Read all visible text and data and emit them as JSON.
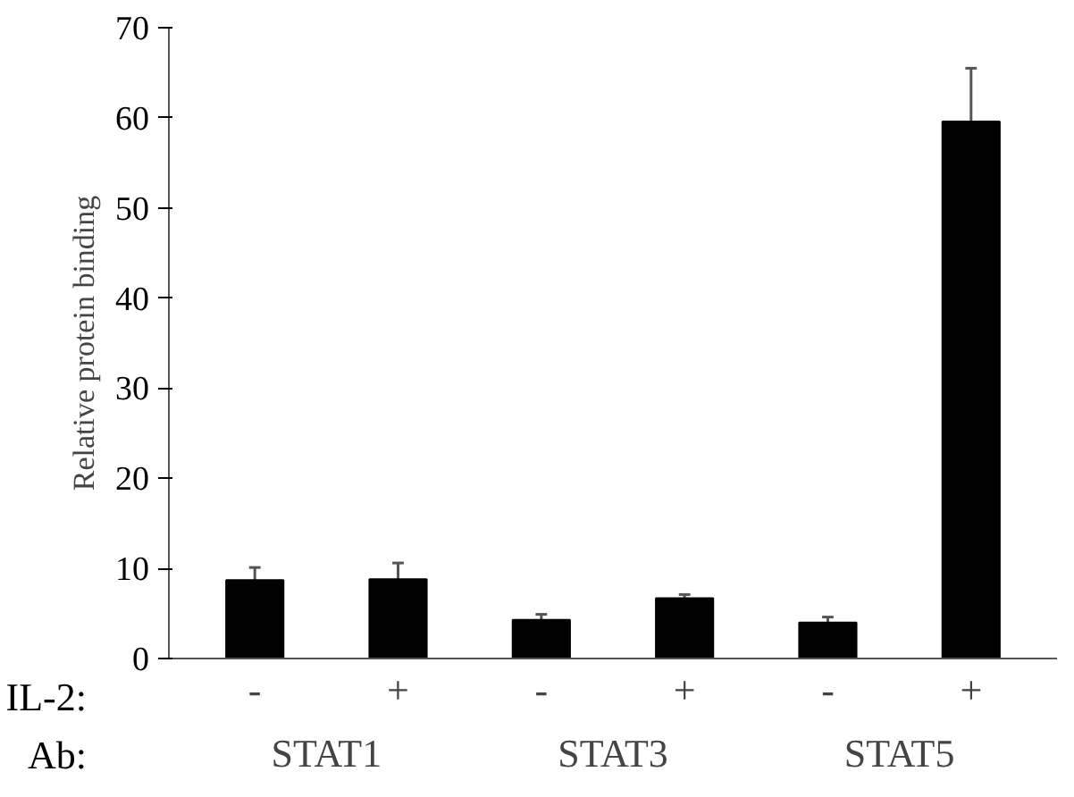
{
  "chart_data": {
    "type": "bar",
    "ylabel": "Relative protein binding",
    "categories": [
      "-",
      "+",
      "-",
      "+",
      "-",
      "+"
    ],
    "values": [
      8.7,
      8.8,
      4.3,
      6.7,
      4.0,
      59.6
    ],
    "errors": [
      1.4,
      1.8,
      0.6,
      0.4,
      0.6,
      5.9
    ],
    "color": "#000000",
    "ylim": [
      0,
      70
    ],
    "yticks": [
      0,
      10,
      20,
      30,
      40,
      50,
      60,
      70
    ],
    "grid": false,
    "annotations": [
      "IL-2:",
      "Ab:",
      "STAT1",
      "STAT3",
      "STAT5"
    ]
  }
}
